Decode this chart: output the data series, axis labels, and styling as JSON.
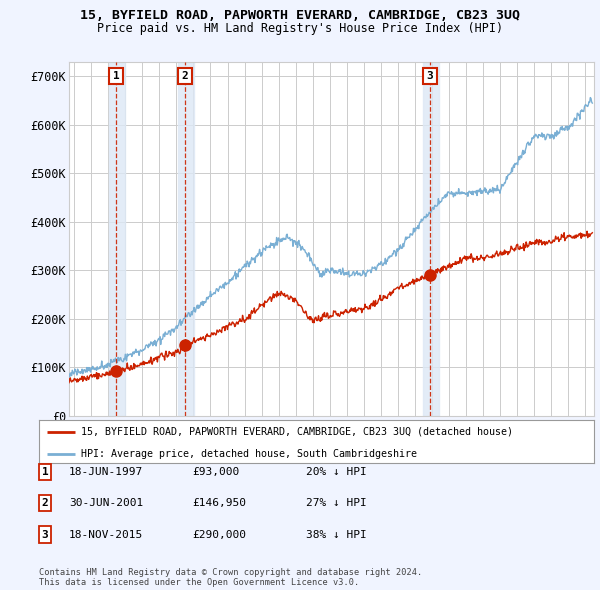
{
  "title": "15, BYFIELD ROAD, PAPWORTH EVERARD, CAMBRIDGE, CB23 3UQ",
  "subtitle": "Price paid vs. HM Land Registry's House Price Index (HPI)",
  "xlim_start": 1994.7,
  "xlim_end": 2025.5,
  "ylim": [
    0,
    730000
  ],
  "yticks": [
    0,
    100000,
    200000,
    300000,
    400000,
    500000,
    600000,
    700000
  ],
  "ytick_labels": [
    "£0",
    "£100K",
    "£200K",
    "£300K",
    "£400K",
    "£500K",
    "£600K",
    "£700K"
  ],
  "sale_color": "#cc2200",
  "hpi_color": "#7aafd4",
  "sale_label": "15, BYFIELD ROAD, PAPWORTH EVERARD, CAMBRIDGE, CB23 3UQ (detached house)",
  "hpi_label": "HPI: Average price, detached house, South Cambridgeshire",
  "transactions": [
    {
      "num": 1,
      "date": "18-JUN-1997",
      "price": 93000,
      "pct": "20%",
      "x": 1997.46
    },
    {
      "num": 2,
      "date": "30-JUN-2001",
      "price": 146950,
      "pct": "27%",
      "x": 2001.5
    },
    {
      "num": 3,
      "date": "18-NOV-2015",
      "price": 290000,
      "pct": "38%",
      "x": 2015.88
    }
  ],
  "legend_table": [
    {
      "num": 1,
      "date": "18-JUN-1997",
      "price": "£93,000",
      "pct": "20% ↓ HPI"
    },
    {
      "num": 2,
      "date": "30-JUN-2001",
      "price": "£146,950",
      "pct": "27% ↓ HPI"
    },
    {
      "num": 3,
      "date": "18-NOV-2015",
      "price": "£290,000",
      "pct": "38% ↓ HPI"
    }
  ],
  "footer": "Contains HM Land Registry data © Crown copyright and database right 2024.\nThis data is licensed under the Open Government Licence v3.0.",
  "background_color": "#f0f4ff",
  "plot_bg": "#ffffff",
  "grid_color": "#cccccc",
  "shade_color": "#dde8f5"
}
